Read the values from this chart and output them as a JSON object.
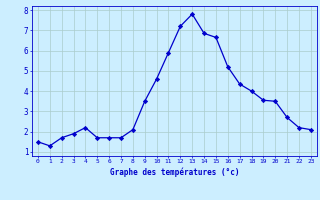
{
  "x": [
    0,
    1,
    2,
    3,
    4,
    5,
    6,
    7,
    8,
    9,
    10,
    11,
    12,
    13,
    14,
    15,
    16,
    17,
    18,
    19,
    20,
    21,
    22,
    23
  ],
  "y": [
    1.5,
    1.3,
    1.7,
    1.9,
    2.2,
    1.7,
    1.7,
    1.7,
    2.1,
    3.5,
    4.6,
    5.9,
    7.2,
    7.8,
    6.85,
    6.65,
    5.2,
    4.35,
    4.0,
    3.55,
    3.5,
    2.7,
    2.2,
    2.1
  ],
  "xlabel": "Graphe des températures (°c)",
  "bg_color": "#cceeff",
  "line_color": "#0000cc",
  "marker_color": "#0000cc",
  "grid_color": "#aacccc",
  "tick_label_color": "#0000cc",
  "axis_label_color": "#0000cc",
  "xlim": [
    -0.5,
    23.5
  ],
  "ylim": [
    0.8,
    8.2
  ],
  "yticks": [
    1,
    2,
    3,
    4,
    5,
    6,
    7,
    8
  ],
  "xticks": [
    0,
    1,
    2,
    3,
    4,
    5,
    6,
    7,
    8,
    9,
    10,
    11,
    12,
    13,
    14,
    15,
    16,
    17,
    18,
    19,
    20,
    21,
    22,
    23
  ]
}
